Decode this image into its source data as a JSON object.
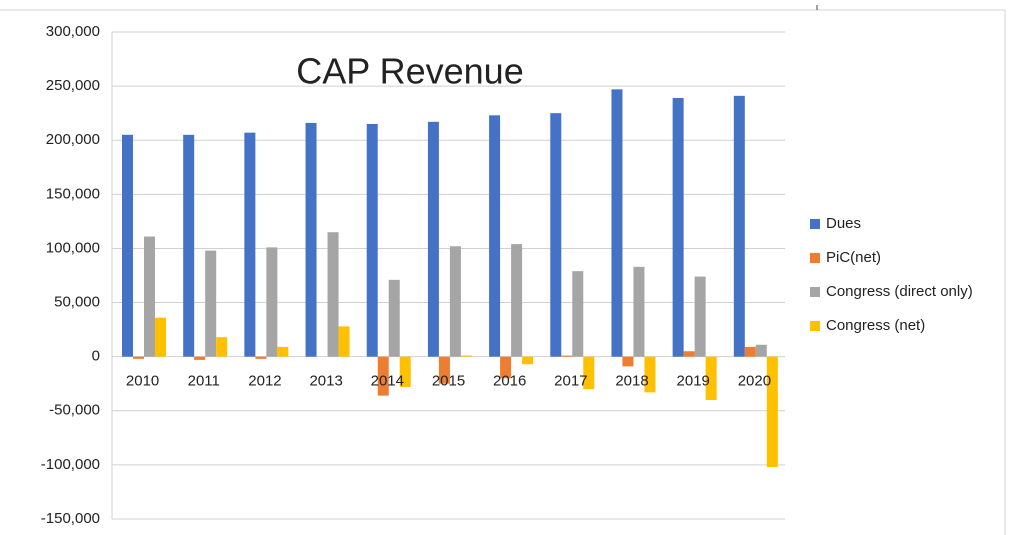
{
  "chart_data": {
    "type": "bar",
    "title": "CAP Revenue",
    "categories": [
      "2010",
      "2011",
      "2012",
      "2013",
      "2014",
      "2015",
      "2016",
      "2017",
      "2018",
      "2019",
      "2020"
    ],
    "series": [
      {
        "name": "Dues",
        "color": "#4472c4",
        "values": [
          205000,
          205000,
          207000,
          216000,
          215000,
          217000,
          223000,
          225000,
          247000,
          239000,
          241000
        ]
      },
      {
        "name": "PiC(net)",
        "color": "#ed7d31",
        "values": [
          -2000,
          -3000,
          -2000,
          0,
          -36000,
          -25000,
          -20000,
          1000,
          -9000,
          5000,
          9000
        ]
      },
      {
        "name": "Congress (direct only)",
        "color": "#a5a5a5",
        "values": [
          111000,
          98000,
          101000,
          115000,
          71000,
          102000,
          104000,
          79000,
          83000,
          74000,
          11000
        ]
      },
      {
        "name": "Congress (net)",
        "color": "#ffc000",
        "values": [
          36000,
          18000,
          9000,
          28000,
          -28000,
          1000,
          -7000,
          -30000,
          -33000,
          -40000,
          -102000
        ]
      }
    ],
    "ylim": [
      -150000,
      300000
    ],
    "yticks": [
      {
        "value": -150000,
        "label": "-150,000"
      },
      {
        "value": -100000,
        "label": "-100,000"
      },
      {
        "value": -50000,
        "label": "-50,000"
      },
      0,
      {
        "value": 50000,
        "label": "50,000"
      },
      {
        "value": 100000,
        "label": "100,000"
      },
      {
        "value": 150000,
        "label": "150,000"
      },
      {
        "value": 200000,
        "label": "200,000"
      },
      {
        "value": 250000,
        "label": "250,000"
      },
      {
        "value": 300000,
        "label": "300,000"
      }
    ],
    "grid": true,
    "legend": "right"
  }
}
